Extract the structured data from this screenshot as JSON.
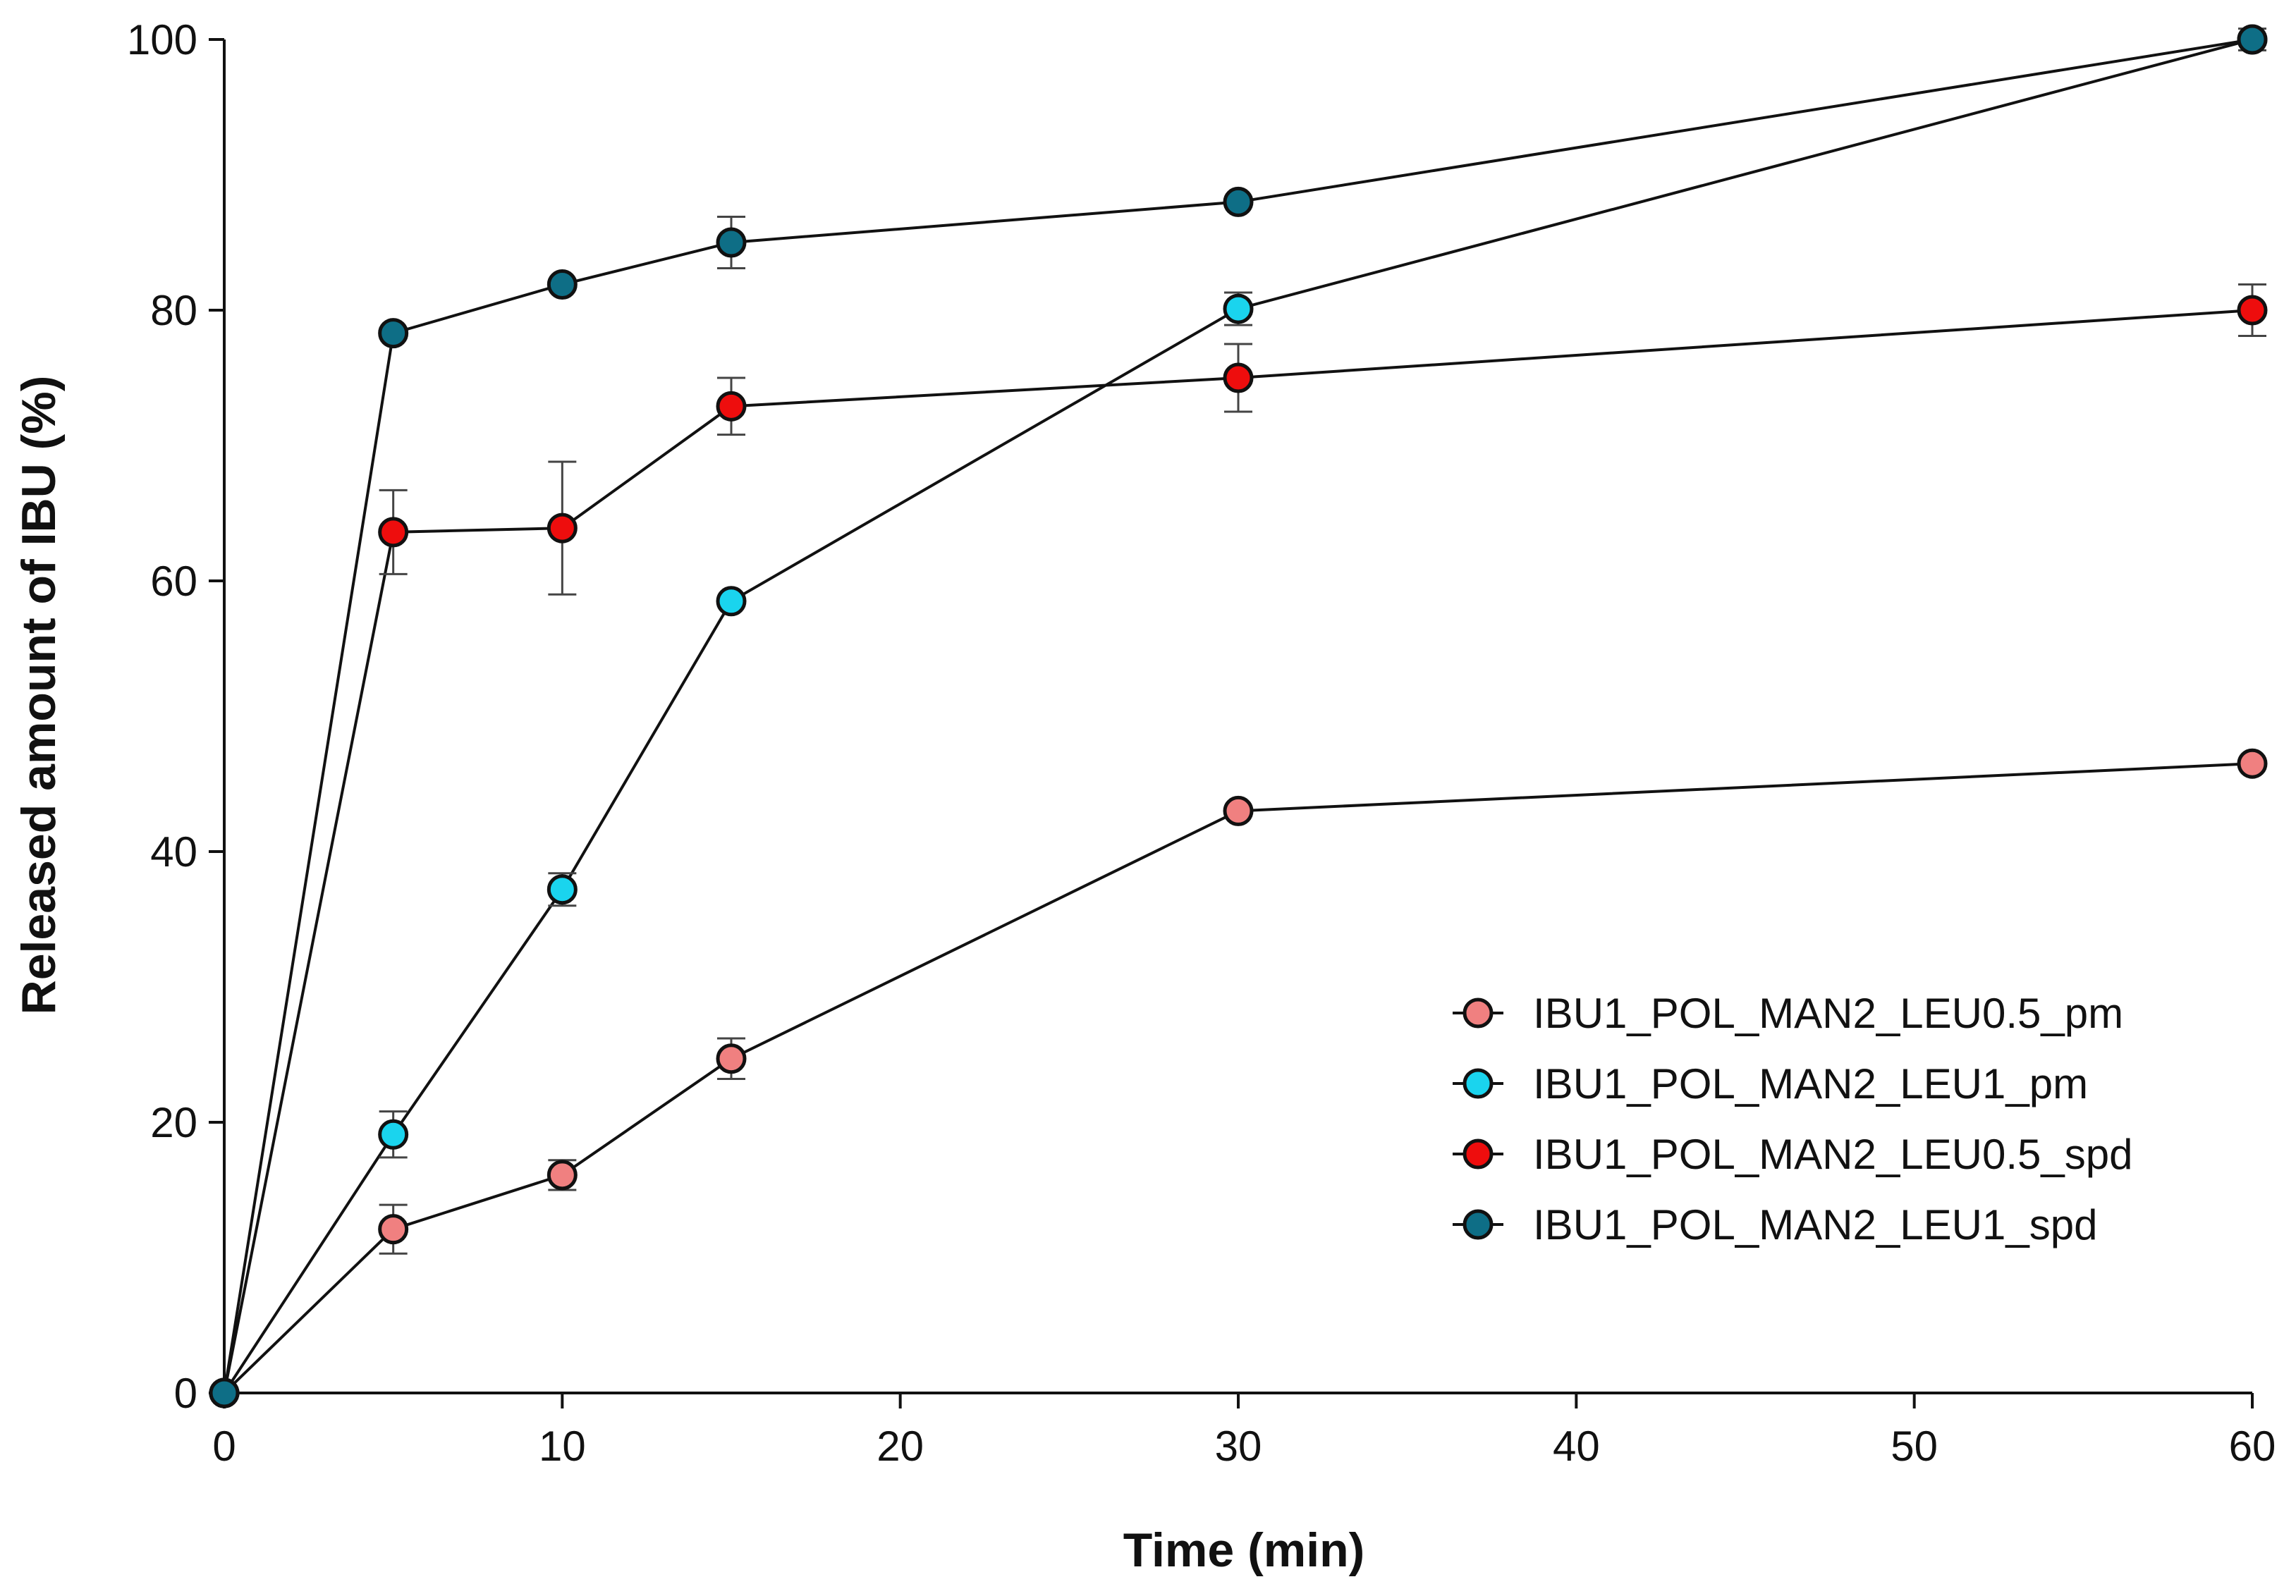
{
  "chart_data": {
    "type": "line",
    "title": "",
    "xlabel": "Time (min)",
    "ylabel": "Released amount of IBU (%)",
    "xlim": [
      0,
      60
    ],
    "ylim": [
      0,
      100
    ],
    "xticks": [
      0,
      10,
      20,
      30,
      40,
      50,
      60
    ],
    "yticks": [
      0,
      20,
      40,
      60,
      80,
      100
    ],
    "grid": false,
    "legend_position": "bottom-right",
    "x": [
      0,
      5,
      10,
      15,
      30,
      60
    ],
    "series": [
      {
        "name": "IBU1_POL_MAN2_LEU0.5_pm",
        "color": "#f08080",
        "values": [
          0,
          12.1,
          16.1,
          24.7,
          43.0,
          46.5
        ],
        "errors": [
          0,
          1.8,
          1.1,
          1.5,
          0,
          0
        ]
      },
      {
        "name": "IBU1_POL_MAN2_LEU1_pm",
        "color": "#1ad4ee",
        "values": [
          0,
          19.1,
          37.2,
          58.5,
          80.1,
          100.0
        ],
        "errors": [
          0,
          1.7,
          1.2,
          0,
          1.2,
          0.8
        ]
      },
      {
        "name": "IBU1_POL_MAN2_LEU0.5_spd",
        "color": "#ee0d0d",
        "values": [
          0,
          63.6,
          63.9,
          72.9,
          75.0,
          80.0
        ],
        "errors": [
          0,
          3.1,
          4.9,
          2.1,
          2.5,
          1.9
        ]
      },
      {
        "name": "IBU1_POL_MAN2_LEU1_spd",
        "color": "#0e6e86",
        "values": [
          0,
          78.3,
          81.9,
          85.0,
          88.0,
          100.0
        ],
        "errors": [
          0,
          0,
          0,
          1.9,
          0,
          0
        ]
      }
    ]
  }
}
